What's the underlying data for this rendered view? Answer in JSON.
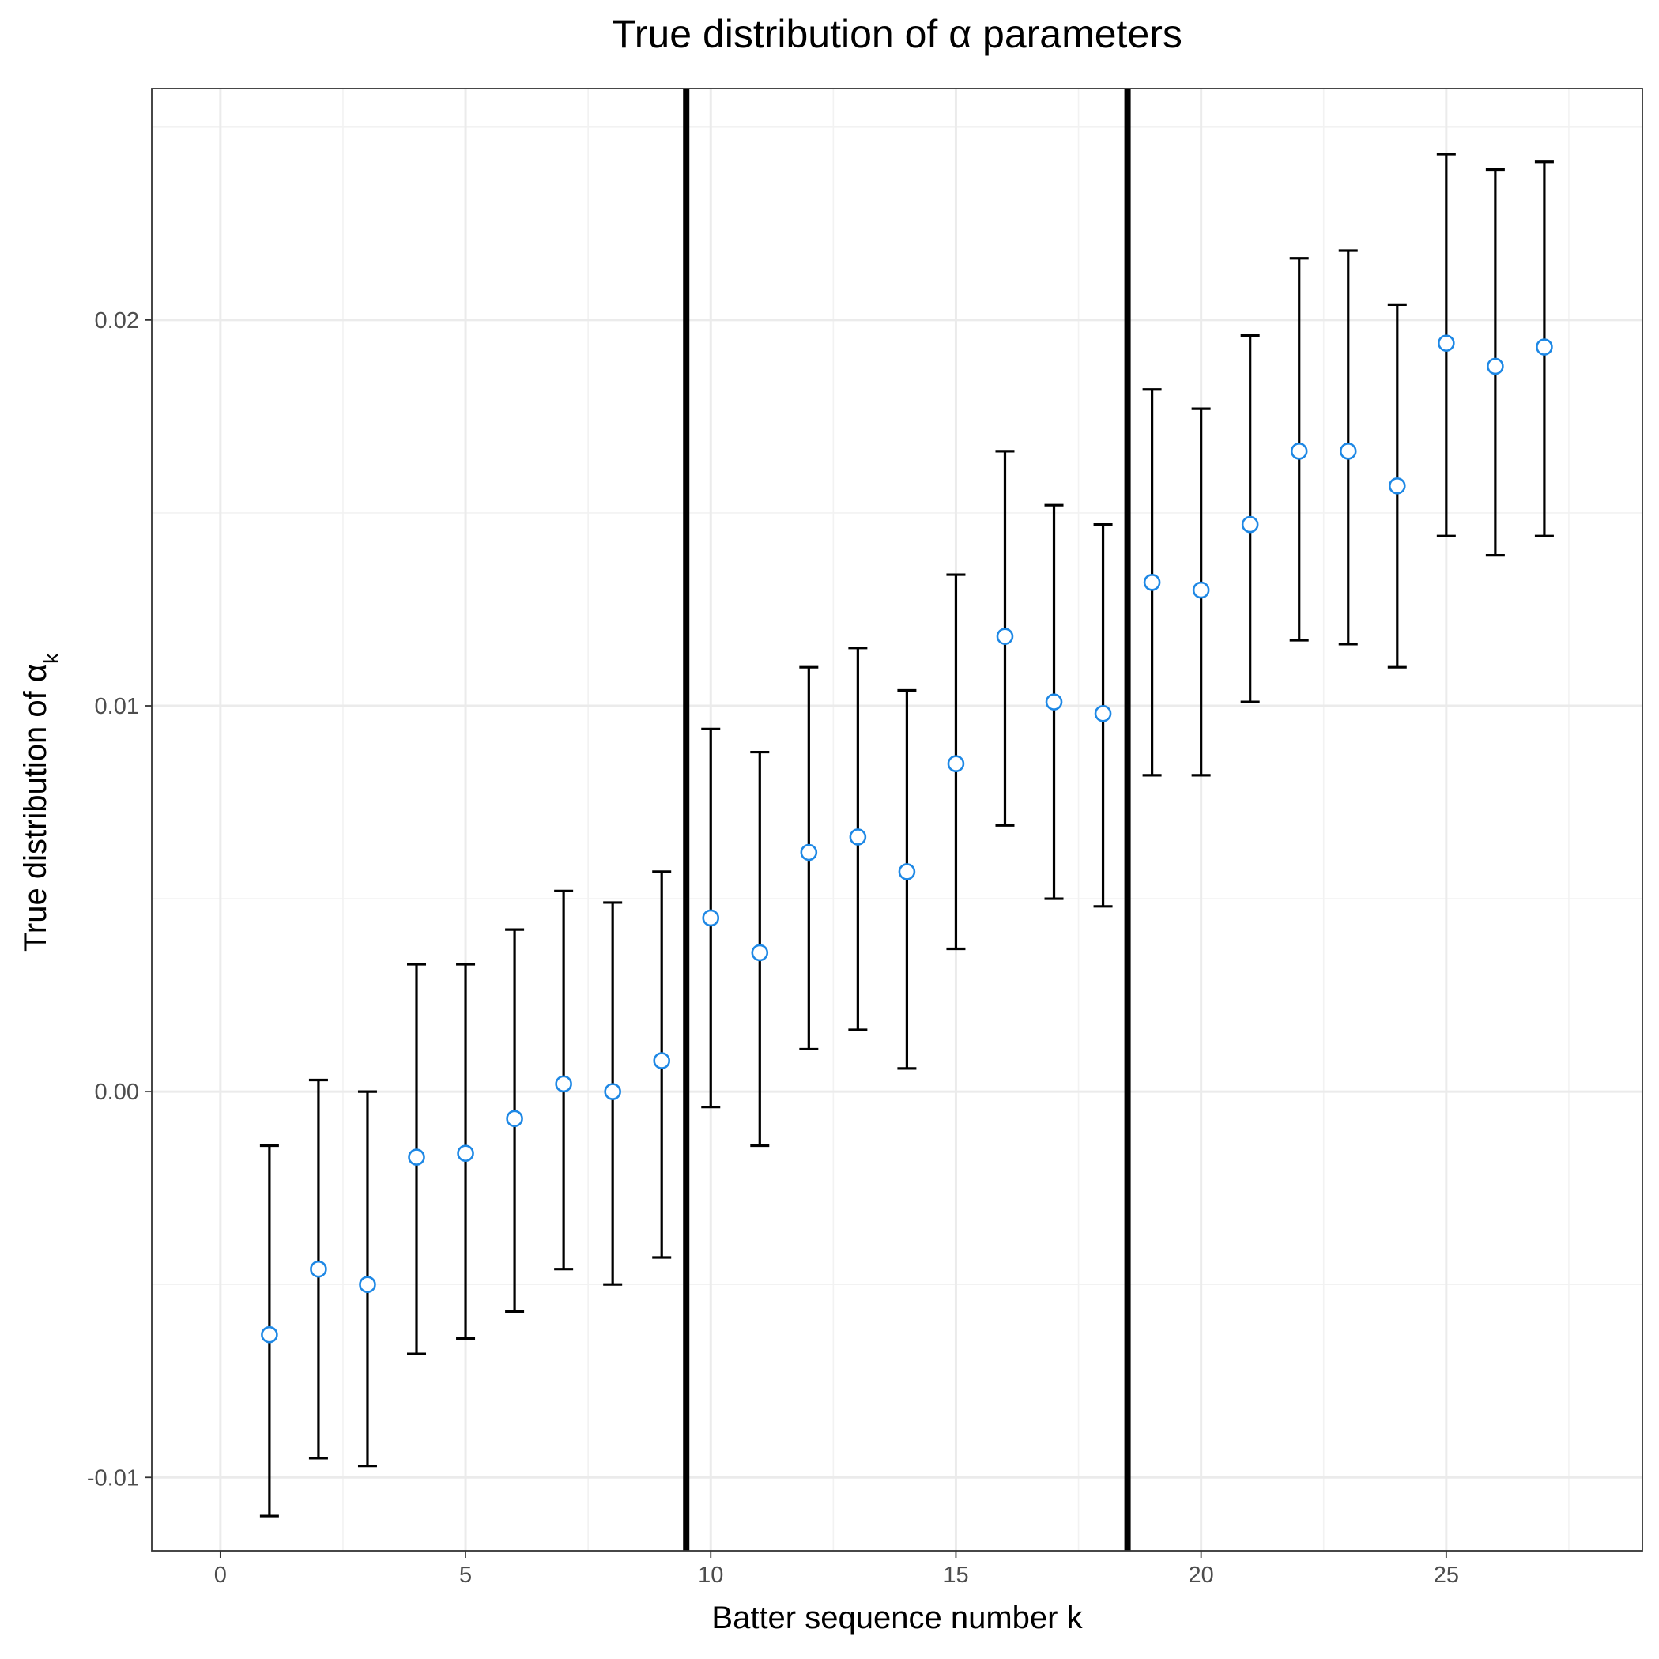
{
  "chart_data": {
    "type": "scatter",
    "title": "True distribution of α parameters",
    "xlabel": "Batter sequence number k",
    "ylabel": "True distribution of αk",
    "ylabel_main": "True distribution of α",
    "ylabel_sub": "k",
    "xlim": [
      -1.4,
      29.0
    ],
    "ylim": [
      -0.0119,
      0.026
    ],
    "x_ticks": [
      0,
      5,
      10,
      15,
      20,
      25
    ],
    "x_tick_labels": [
      "0",
      "5",
      "10",
      "15",
      "20",
      "25"
    ],
    "y_ticks": [
      -0.01,
      0.0,
      0.01,
      0.02
    ],
    "y_tick_labels": [
      "-0.01",
      "0.00",
      "0.01",
      "0.02"
    ],
    "grid": true,
    "legend": "none",
    "vertical_lines": [
      9.5,
      18.5
    ],
    "point_color": "#1e88e5",
    "series": [
      {
        "x": [
          1,
          2,
          3,
          4,
          5,
          6,
          7,
          8,
          9,
          10,
          11,
          12,
          13,
          14,
          15,
          16,
          17,
          18,
          19,
          20,
          21,
          22,
          23,
          24,
          25,
          26,
          27
        ],
        "y": [
          -0.0063,
          -0.0046,
          -0.005,
          -0.0017,
          -0.0016,
          -0.0007,
          0.0002,
          0.0,
          0.0008,
          0.0045,
          0.0036,
          0.0062,
          0.0066,
          0.0057,
          0.0085,
          0.0118,
          0.0101,
          0.0098,
          0.0132,
          0.013,
          0.0147,
          0.0166,
          0.0166,
          0.0157,
          0.0194,
          0.0188,
          0.0193
        ],
        "lower": [
          -0.011,
          -0.0095,
          -0.0097,
          -0.0068,
          -0.0064,
          -0.0057,
          -0.0046,
          -0.005,
          -0.0043,
          -0.0004,
          -0.0014,
          0.0011,
          0.0016,
          0.0006,
          0.0037,
          0.0069,
          0.005,
          0.0048,
          0.0082,
          0.0082,
          0.0101,
          0.0117,
          0.0116,
          0.011,
          0.0144,
          0.0139,
          0.0144
        ],
        "upper": [
          -0.0014,
          0.0003,
          0.0,
          0.0033,
          0.0033,
          0.0042,
          0.0052,
          0.0049,
          0.0057,
          0.0094,
          0.0088,
          0.011,
          0.0115,
          0.0104,
          0.0134,
          0.0166,
          0.0152,
          0.0147,
          0.0182,
          0.0177,
          0.0196,
          0.0216,
          0.0218,
          0.0204,
          0.0243,
          0.0239,
          0.0241
        ]
      }
    ]
  }
}
